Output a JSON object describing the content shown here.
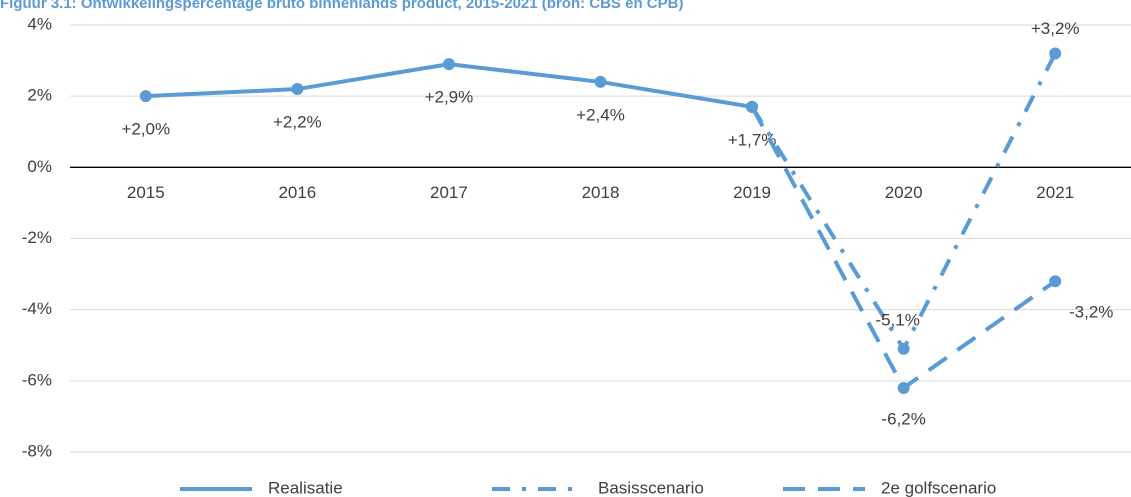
{
  "chart_data": {
    "type": "line",
    "title": "Figuur 3.1: Ontwikkelingspercentage bruto binnenlands product, 2015-2021 (bron: CBS en CPB)",
    "categories": [
      "2015",
      "2016",
      "2017",
      "2018",
      "2019",
      "2020",
      "2021"
    ],
    "series": [
      {
        "name": "Realisatie",
        "color": "#5b9bd5",
        "style": "solid",
        "values": [
          2.0,
          2.2,
          2.9,
          2.4,
          1.7,
          null,
          null
        ],
        "value_labels": [
          "+2,0%",
          "+2,2%",
          "+2,9%",
          "+2,4%",
          "+1,7%",
          null,
          null
        ]
      },
      {
        "name": "Basisscenario",
        "color": "#5b9bd5",
        "style": "dashdot",
        "values": [
          null,
          null,
          null,
          null,
          1.7,
          -5.1,
          3.2
        ],
        "value_labels": [
          null,
          null,
          null,
          null,
          null,
          "-5,1%",
          "+3,2%"
        ]
      },
      {
        "name": "2e golfscenario",
        "color": "#5b9bd5",
        "style": "dashed",
        "values": [
          null,
          null,
          null,
          null,
          1.7,
          -6.2,
          -3.2
        ],
        "value_labels": [
          null,
          null,
          null,
          null,
          null,
          "-6,2%",
          "-3,2%"
        ]
      }
    ],
    "ylim": [
      -8,
      4
    ],
    "yticks": [
      {
        "value": -8,
        "label": "-8%"
      },
      {
        "value": -6,
        "label": "-6%"
      },
      {
        "value": -4,
        "label": "-4%"
      },
      {
        "value": -2,
        "label": "-2%"
      },
      {
        "value": 0,
        "label": "0%"
      },
      {
        "value": 2,
        "label": "2%"
      },
      {
        "value": 4,
        "label": "4%"
      }
    ],
    "grid": true,
    "legend": "bottom"
  }
}
